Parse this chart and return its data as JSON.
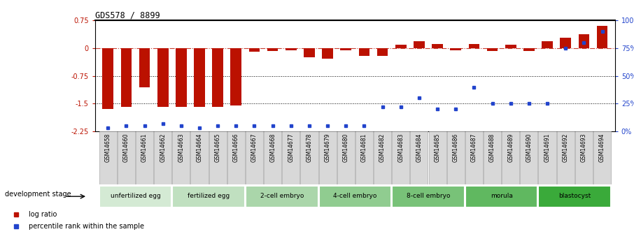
{
  "title": "GDS578 / 8899",
  "samples": [
    "GSM14658",
    "GSM14660",
    "GSM14661",
    "GSM14662",
    "GSM14663",
    "GSM14664",
    "GSM14665",
    "GSM14666",
    "GSM14667",
    "GSM14668",
    "GSM14677",
    "GSM14678",
    "GSM14679",
    "GSM14680",
    "GSM14681",
    "GSM14682",
    "GSM14683",
    "GSM14684",
    "GSM14685",
    "GSM14686",
    "GSM14687",
    "GSM14688",
    "GSM14689",
    "GSM14690",
    "GSM14691",
    "GSM14692",
    "GSM14693",
    "GSM14694"
  ],
  "log_ratio": [
    -1.65,
    -1.58,
    -1.05,
    -1.58,
    -1.58,
    -1.58,
    -1.58,
    -1.55,
    -0.1,
    -0.08,
    -0.05,
    -0.25,
    -0.28,
    -0.05,
    -0.2,
    -0.2,
    0.1,
    0.18,
    0.12,
    -0.05,
    0.12,
    -0.08,
    0.1,
    -0.08,
    0.18,
    0.28,
    0.38,
    0.6
  ],
  "percentile_rank": [
    3,
    5,
    5,
    7,
    5,
    3,
    5,
    5,
    5,
    5,
    5,
    5,
    5,
    5,
    5,
    22,
    22,
    30,
    20,
    20,
    40,
    25,
    25,
    25,
    25,
    75,
    80,
    90
  ],
  "stage_groups": [
    {
      "label": "unfertilized egg",
      "start": 0,
      "end": 3,
      "color": "#d4ead4"
    },
    {
      "label": "fertilized egg",
      "start": 4,
      "end": 7,
      "color": "#c0e0c0"
    },
    {
      "label": "2-cell embryo",
      "start": 8,
      "end": 11,
      "color": "#aad6aa"
    },
    {
      "label": "4-cell embryo",
      "start": 12,
      "end": 15,
      "color": "#90cc90"
    },
    {
      "label": "8-cell embryo",
      "start": 16,
      "end": 19,
      "color": "#78c278"
    },
    {
      "label": "morula",
      "start": 20,
      "end": 23,
      "color": "#60b860"
    },
    {
      "label": "blastocyst",
      "start": 24,
      "end": 27,
      "color": "#3aaa3a"
    }
  ],
  "bar_color_red": "#bb1100",
  "bar_color_blue": "#2244cc",
  "ylim_left": [
    -2.25,
    0.75
  ],
  "yticks_left": [
    0.75,
    0.0,
    -0.75,
    -1.5,
    -2.25
  ],
  "ylim_right": [
    0,
    100
  ],
  "yticks_right": [
    100,
    75,
    50,
    25,
    0
  ],
  "dashed_hline": 0.0,
  "dotted_hlines": [
    -0.75,
    -1.5
  ],
  "legend_red_label": "log ratio",
  "legend_blue_label": "percentile rank within the sample",
  "dev_stage_label": "development stage",
  "sample_bg_color": "#d8d8d8",
  "cell_border_color": "#aaaaaa"
}
